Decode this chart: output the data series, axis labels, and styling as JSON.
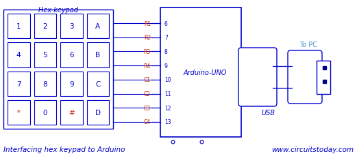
{
  "bg_color": "#ffffff",
  "blue": "#0000cc",
  "red": "#cc2200",
  "dark_blue": "#00008b",
  "topc_color": "#4499cc",
  "title_text": "Interfacing hex keypad to Arduino",
  "website_text": "www.circuitstoday.com",
  "hex_keypad_label": "Hex keypad",
  "arduino_label": "Arduino-UNO",
  "usb_label": "USB",
  "topc_label": "To PC",
  "keypad_keys": [
    [
      "1",
      "2",
      "3",
      "A"
    ],
    [
      "4",
      "5",
      "6",
      "B"
    ],
    [
      "7",
      "8",
      "9",
      "C"
    ],
    [
      "*",
      "0",
      "#",
      "D"
    ]
  ],
  "row_labels": [
    "R1",
    "R2",
    "R3",
    "R4",
    "C1",
    "C2",
    "C3",
    "C4"
  ],
  "pin_numbers": [
    "6",
    "7",
    "8",
    "9",
    "10",
    "11",
    "12",
    "13"
  ],
  "figsize": [
    5.21,
    2.3
  ],
  "dpi": 100
}
